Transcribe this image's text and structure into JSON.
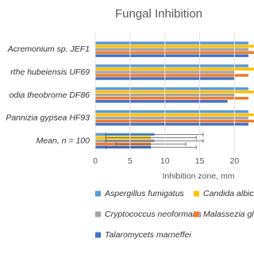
{
  "chart_data": {
    "type": "bar",
    "orientation": "horizontal",
    "title": "Fungal Inhibition",
    "x_label": "Inhibition zone, mm",
    "categories": [
      "Acremonium sp. JEF1",
      "rthe hubeiensis UF69",
      "odia theobrome DF86",
      "Pannizia gypsea HF93",
      "Mean, n = 100"
    ],
    "series": [
      {
        "name": "Aspergillus fumigatus",
        "color": "#5b9bd5",
        "values": [
          22,
          22,
          22,
          22,
          8.5
        ],
        "errors": [
          null,
          null,
          null,
          null,
          7
        ]
      },
      {
        "name": "Candida albicans",
        "color": "#ffc000",
        "values": [
          23,
          23,
          23,
          23,
          8
        ],
        "errors": [
          null,
          null,
          null,
          null,
          6.5
        ]
      },
      {
        "name": "Cryptococcus neoformans",
        "color": "#a5a5a5",
        "values": [
          22,
          20,
          20,
          22,
          8.5
        ],
        "errors": [
          null,
          null,
          null,
          null,
          7
        ]
      },
      {
        "name": "Malassezia globosa",
        "color": "#ed7d31",
        "values": [
          23,
          22,
          22,
          23,
          8
        ],
        "errors": [
          null,
          null,
          null,
          null,
          5
        ]
      },
      {
        "name": "Talaromycets marneffei",
        "color": "#4472c4",
        "values": [
          22,
          20,
          19,
          22,
          8
        ],
        "errors": [
          null,
          null,
          null,
          null,
          6.5
        ]
      }
    ],
    "xlim": [
      0,
      22.8
    ],
    "xticks": [
      0,
      5,
      10,
      15,
      20
    ],
    "grid": true,
    "legend": "bottom"
  }
}
